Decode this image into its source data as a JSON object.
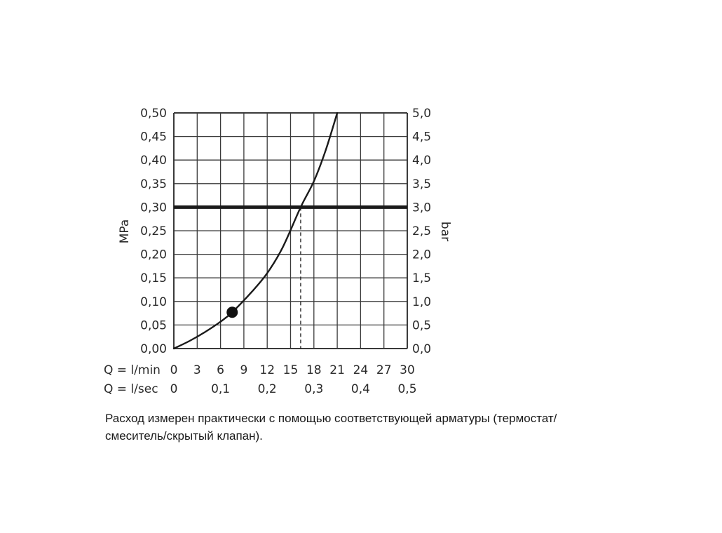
{
  "chart_data": {
    "type": "line",
    "left_axis": {
      "title": "MPa",
      "ticks": [
        "0,00",
        "0,05",
        "0,10",
        "0,15",
        "0,20",
        "0,25",
        "0,30",
        "0,35",
        "0,40",
        "0,45",
        "0,50"
      ],
      "range": [
        0,
        0.5
      ]
    },
    "right_axis": {
      "title": "bar",
      "ticks": [
        "0,0",
        "0,5",
        "1,0",
        "1,5",
        "2,0",
        "2,5",
        "3,0",
        "3,5",
        "4,0",
        "4,5",
        "5,0"
      ],
      "range": [
        0,
        5
      ]
    },
    "x_axis_primary": {
      "label": "Q = l/min",
      "ticks": [
        "0",
        "3",
        "6",
        "9",
        "12",
        "15",
        "18",
        "21",
        "24",
        "27",
        "30"
      ],
      "range": [
        0,
        30
      ]
    },
    "x_axis_secondary": {
      "label": "Q = l/sec",
      "ticks": [
        "0",
        "0,1",
        "0,2",
        "0,3",
        "0,4",
        "0,5"
      ],
      "values": [
        0,
        0.1,
        0.2,
        0.3,
        0.4,
        0.5
      ]
    },
    "grid": true,
    "series": [
      {
        "x": [
          0,
          2,
          4,
          6,
          7.5,
          10,
          12,
          14,
          16.3,
          18,
          19.5,
          21
        ],
        "y": [
          0,
          0.016,
          0.035,
          0.057,
          0.077,
          0.12,
          0.16,
          0.215,
          0.3,
          0.355,
          0.42,
          0.5
        ]
      }
    ],
    "reference_line": {
      "y": 0.3
    },
    "reference_drop": {
      "x": 16.3,
      "y": 0.3
    },
    "marker": {
      "x": 7.5,
      "y": 0.077
    }
  },
  "caption": {
    "line1": "Расход измерен практически с помощью соответствующей арматуры (термостат/",
    "line2": "смеситель/скрытый клапан)."
  }
}
